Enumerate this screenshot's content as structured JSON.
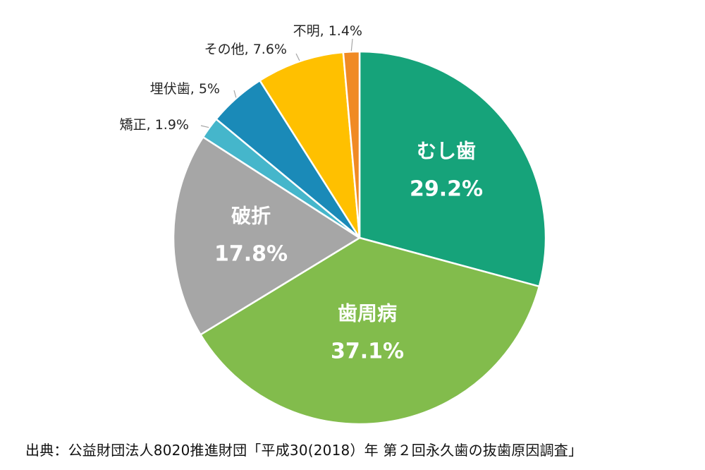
{
  "chart_data": {
    "type": "pie",
    "title": "",
    "slices": [
      {
        "label": "むし歯",
        "value": 29.2,
        "value_text": "29.2%",
        "color": "#16A37A",
        "label_style": "inside"
      },
      {
        "label": "歯周病",
        "value": 37.1,
        "value_text": "37.1%",
        "color": "#82BC4C",
        "label_style": "inside"
      },
      {
        "label": "破折",
        "value": 17.8,
        "value_text": "17.8%",
        "color": "#A6A6A6",
        "label_style": "inside"
      },
      {
        "label": "矯正",
        "value": 1.9,
        "value_text": "1.9%",
        "color": "#45B6CB",
        "label_style": "outside"
      },
      {
        "label": "埋伏歯",
        "value": 5.0,
        "value_text": "5%",
        "color": "#1A8AB8",
        "label_style": "outside"
      },
      {
        "label": "その他",
        "value": 7.6,
        "value_text": "7.6%",
        "color": "#FFC000",
        "label_style": "outside"
      },
      {
        "label": "不明",
        "value": 1.4,
        "value_text": "1.4%",
        "color": "#F08A24",
        "label_style": "outside"
      }
    ],
    "start": "12 o'clock",
    "direction": "clockwise"
  },
  "source": "出典：公益財団法人8020推進財団「平成30(2018）年 第２回永久歯の抜歯原因調査」"
}
